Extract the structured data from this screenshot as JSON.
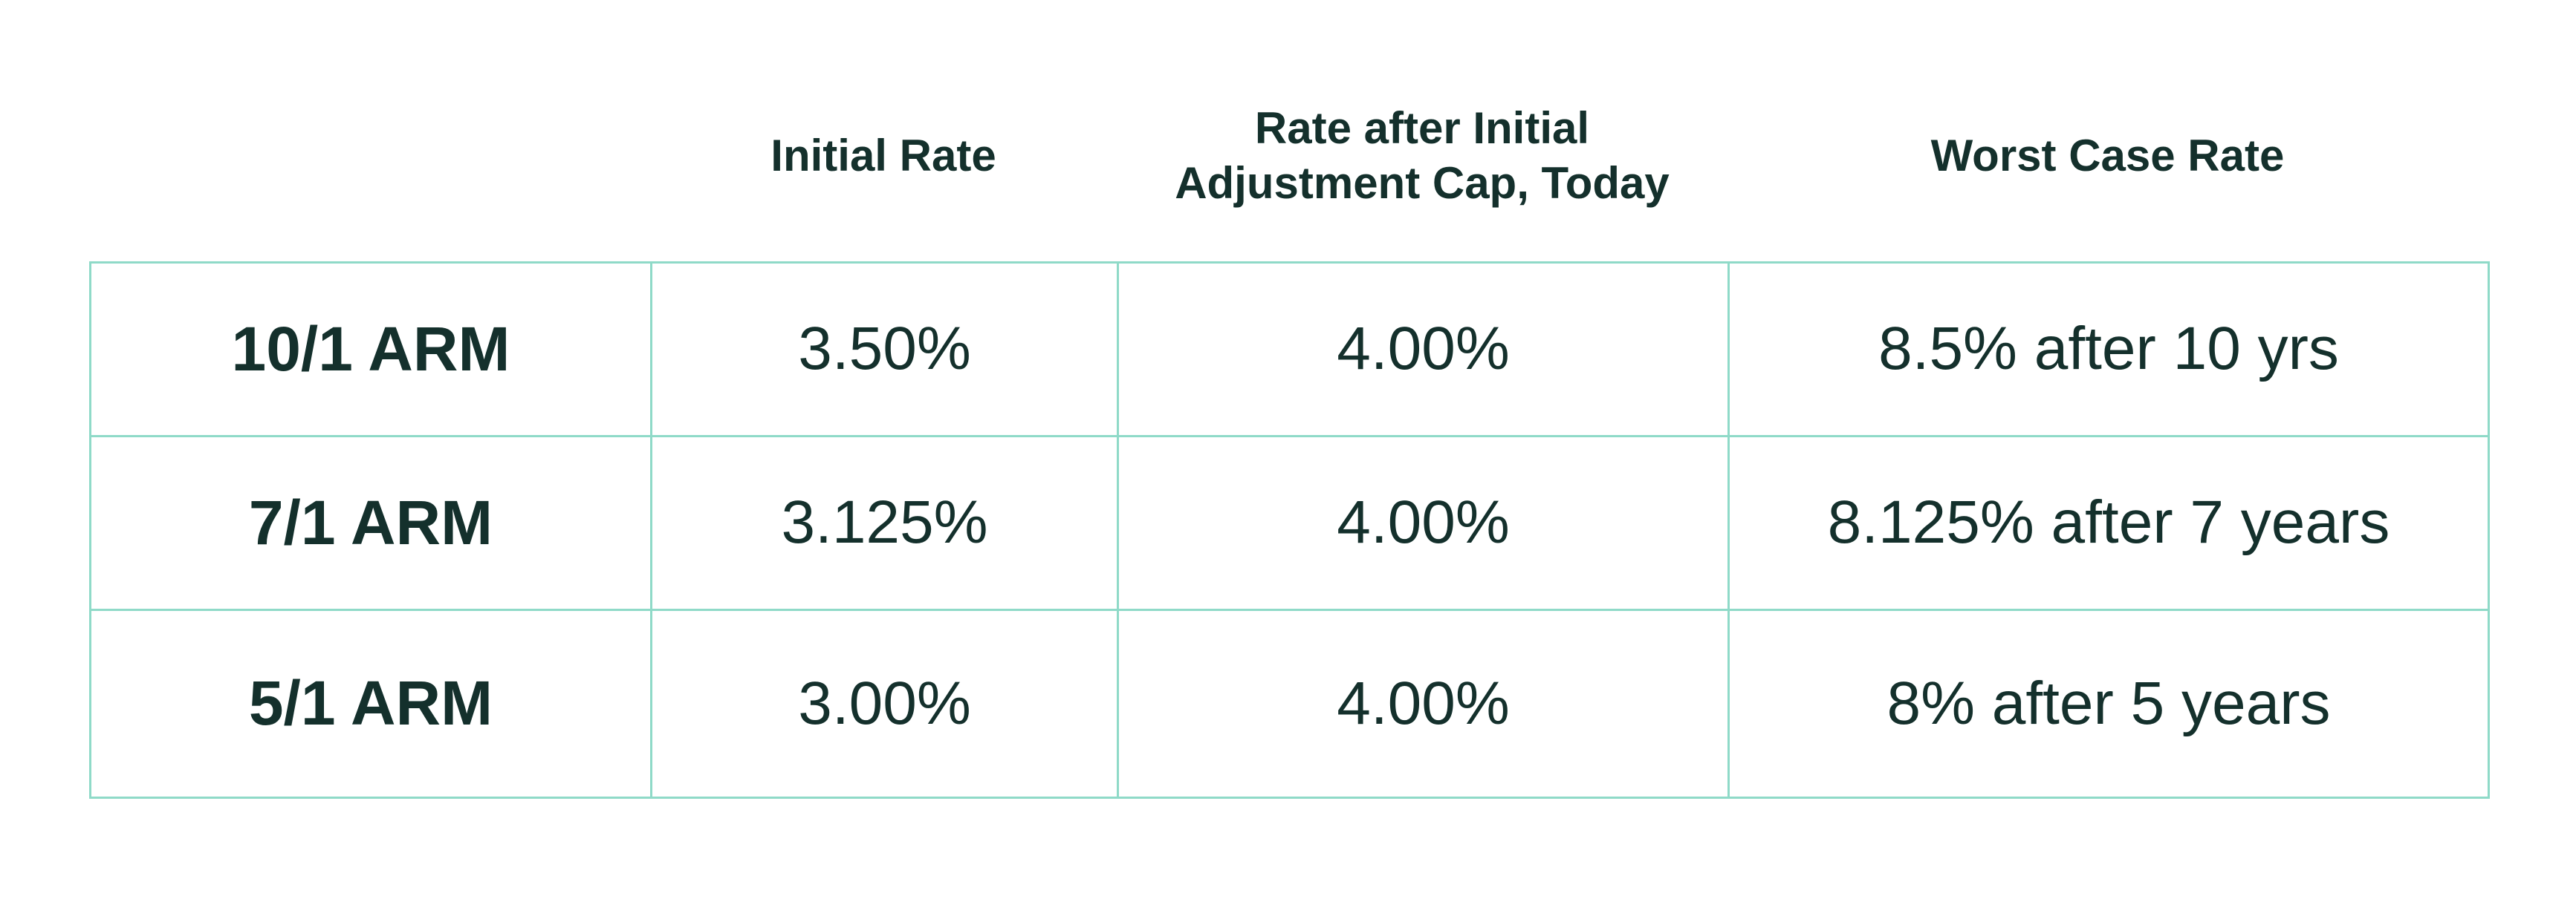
{
  "columns": [
    "Initial Rate",
    "Rate after Initial\nAdjustment Cap, Today",
    "Worst Case Rate"
  ],
  "rows": [
    {
      "label": "10/1 ARM",
      "initial_rate": "3.50%",
      "rate_after_cap": "4.00%",
      "worst_case": "8.5% after 10 yrs"
    },
    {
      "label": "7/1 ARM",
      "initial_rate": "3.125%",
      "rate_after_cap": "4.00%",
      "worst_case": "8.125% after 7 years"
    },
    {
      "label": "5/1 ARM",
      "initial_rate": "3.00%",
      "rate_after_cap": "4.00%",
      "worst_case": "8% after 5 years"
    }
  ],
  "colors": {
    "text": "#14302c",
    "border": "#8fdac8",
    "background": "#ffffff"
  }
}
